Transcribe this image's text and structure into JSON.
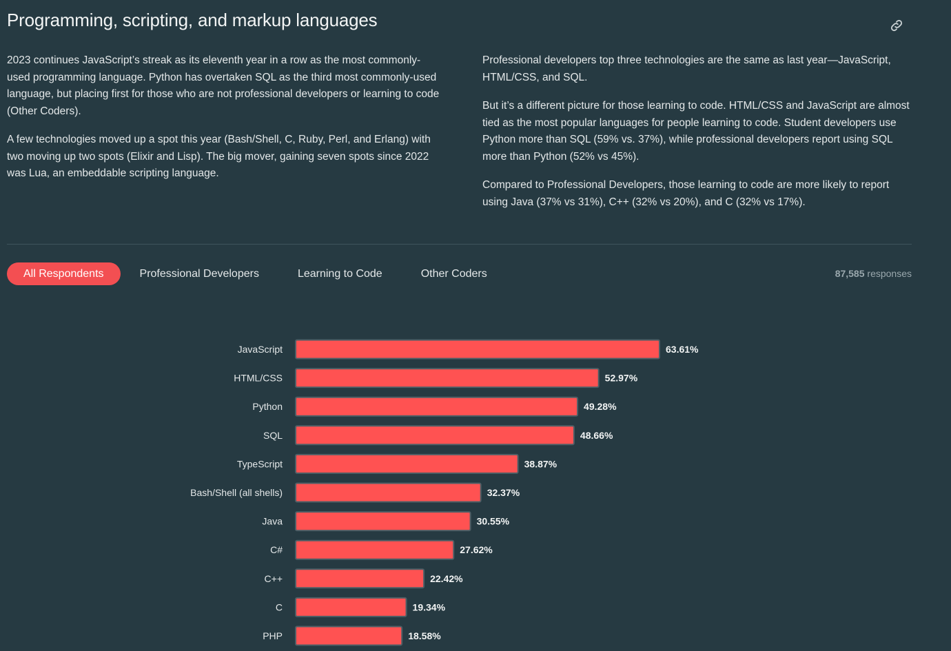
{
  "header": {
    "title": "Programming, scripting, and markup languages"
  },
  "intro": {
    "left": [
      "2023 continues JavaScript’s streak as its eleventh year in a row as the most commonly-used programming language. Python has overtaken SQL as the third most commonly-used language, but placing first for those who are not professional developers or learning to code (Other Coders).",
      "A few technologies moved up a spot this year (Bash/Shell, C, Ruby, Perl, and Erlang) with two moving up two spots (Elixir and Lisp). The big mover, gaining seven spots since 2022 was Lua, an embeddable scripting language."
    ],
    "right": [
      "Professional developers top three technologies are the same as last year—JavaScript, HTML/CSS, and SQL.",
      "But it’s a different picture for those learning to code. HTML/CSS and JavaScript are almost tied as the most popular languages for people learning to code. Student developers use Python more than SQL (59% vs. 37%), while professional developers report using SQL more than Python (52% vs 45%).",
      "Compared to Professional Developers, those learning to code are more likely to report using Java (37% vs 31%), C++ (32% vs 20%), and C (32% vs 17%)."
    ]
  },
  "tabs": [
    {
      "label": "All Respondents",
      "active": true
    },
    {
      "label": "Professional Developers",
      "active": false
    },
    {
      "label": "Learning to Code",
      "active": false
    },
    {
      "label": "Other Coders",
      "active": false
    }
  ],
  "responses": {
    "count": "87,585",
    "label": "responses"
  },
  "colors": {
    "background": "#263a42",
    "accent": "#f34f52",
    "bar_fill": "#ff5252",
    "bar_stroke": "#4e5f66"
  },
  "chart_data": {
    "type": "bar",
    "orientation": "horizontal",
    "categories": [
      "JavaScript",
      "HTML/CSS",
      "Python",
      "SQL",
      "TypeScript",
      "Bash/Shell (all shells)",
      "Java",
      "C#",
      "C++",
      "C",
      "PHP"
    ],
    "values": [
      63.61,
      52.97,
      49.28,
      48.66,
      38.87,
      32.37,
      30.55,
      27.62,
      22.42,
      19.34,
      18.58
    ],
    "value_labels": [
      "63.61%",
      "52.97%",
      "49.28%",
      "48.66%",
      "38.87%",
      "32.37%",
      "30.55%",
      "27.62%",
      "22.42%",
      "19.34%",
      "18.58%"
    ],
    "xlim": [
      0,
      100
    ],
    "grid": false,
    "title": "",
    "xlabel": "",
    "ylabel": ""
  }
}
